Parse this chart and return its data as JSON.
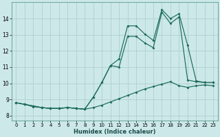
{
  "xlabel": "Humidex (Indice chaleur)",
  "x_ticks": [
    0,
    1,
    2,
    3,
    4,
    5,
    6,
    7,
    8,
    9,
    10,
    11,
    12,
    13,
    14,
    15,
    16,
    17,
    18,
    19,
    20,
    21,
    22,
    23
  ],
  "y_ticks": [
    8,
    9,
    10,
    11,
    12,
    13,
    14
  ],
  "xlim": [
    -0.5,
    23.5
  ],
  "ylim": [
    7.7,
    15.0
  ],
  "background_color": "#cce8e8",
  "line_color": "#1a6b5a",
  "grid_color": "#b0d0d0",
  "series1_x": [
    0,
    1,
    2,
    3,
    4,
    5,
    6,
    7,
    8,
    9,
    10,
    11,
    12,
    13,
    14,
    15,
    16,
    17,
    18,
    19,
    20,
    21,
    22,
    23
  ],
  "series1_y": [
    8.8,
    8.7,
    8.6,
    8.5,
    8.45,
    8.45,
    8.5,
    8.45,
    8.4,
    8.5,
    8.65,
    8.85,
    9.05,
    9.25,
    9.45,
    9.65,
    9.8,
    9.95,
    10.1,
    9.85,
    9.75,
    9.85,
    9.9,
    9.85
  ],
  "series2_x": [
    0,
    1,
    2,
    3,
    4,
    5,
    6,
    7,
    8,
    9,
    10,
    11,
    12,
    13,
    14,
    15,
    16,
    17,
    18,
    19,
    20,
    21,
    22,
    23
  ],
  "series2_y": [
    8.8,
    8.7,
    8.6,
    8.5,
    8.45,
    8.45,
    8.5,
    8.45,
    8.4,
    9.15,
    10.05,
    11.1,
    11.0,
    12.9,
    12.9,
    12.5,
    12.2,
    14.4,
    13.7,
    14.1,
    10.2,
    10.1,
    10.05,
    10.05
  ],
  "series3_x": [
    0,
    1,
    2,
    3,
    4,
    5,
    6,
    7,
    8,
    9,
    10,
    11,
    12,
    13,
    14,
    15,
    16,
    17,
    18,
    19,
    20,
    21,
    22,
    23
  ],
  "series3_y": [
    8.8,
    8.7,
    8.55,
    8.5,
    8.45,
    8.45,
    8.5,
    8.45,
    8.4,
    9.15,
    10.05,
    11.1,
    11.5,
    13.55,
    13.55,
    13.05,
    12.65,
    14.55,
    14.0,
    14.3,
    12.35,
    10.15,
    10.05,
    10.05
  ]
}
